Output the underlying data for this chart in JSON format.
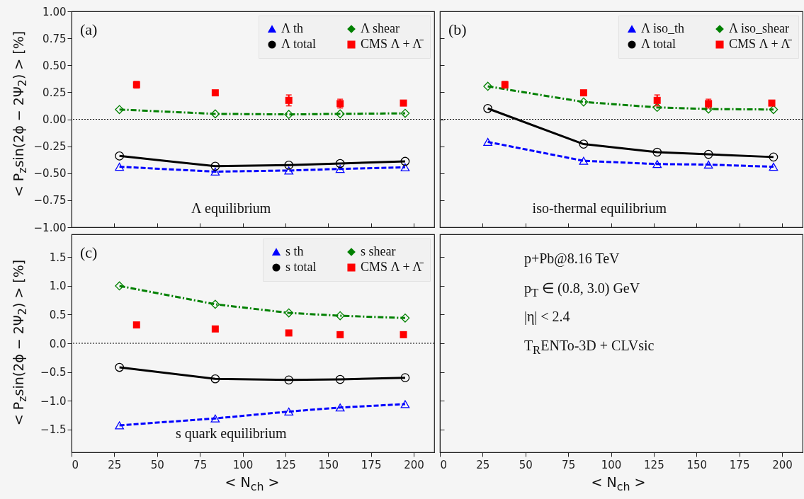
{
  "chart_data": [
    {
      "type": "line",
      "x": [
        28,
        84,
        127,
        157,
        195
      ],
      "xlim": [
        0,
        212
      ],
      "xticks": [
        0,
        25,
        50,
        75,
        100,
        125,
        150,
        175,
        200
      ],
      "ylim": [
        -1,
        1
      ],
      "yticks": [
        {
          "value": -1,
          "label": "−1.00"
        },
        {
          "value": -0.75,
          "label": "−0.75"
        },
        {
          "value": -0.5,
          "label": "−0.50"
        },
        {
          "value": -0.25,
          "label": "−0.25"
        },
        {
          "value": 0,
          "label": "0.00"
        },
        {
          "value": 0.25,
          "label": "0.25"
        },
        {
          "value": 0.5,
          "label": "0.50"
        },
        {
          "value": 0.75,
          "label": "0.75"
        },
        {
          "value": 1,
          "label": "1.00"
        }
      ],
      "ylabel": "< P$_{z}$sin(2ϕ − 2Ψ$_{2}$) > [%]",
      "tick_labels": "y",
      "legend": "top right",
      "grid": false,
      "series": [
        {
          "name": "Λ th",
          "color": "#0000ff",
          "marker": "triangle",
          "line_style": "dashed",
          "values": [
            -0.44,
            -0.485,
            -0.475,
            -0.46,
            -0.445
          ]
        },
        {
          "name": "Λ shear",
          "color": "#008000",
          "marker": "diamond",
          "line_style": "dotted",
          "values": [
            0.09,
            0.05,
            0.045,
            0.05,
            0.055
          ]
        },
        {
          "name": "Λ total",
          "color": "#000000",
          "marker": "circle",
          "line_style": "solid",
          "values": [
            -0.34,
            -0.435,
            -0.425,
            -0.41,
            -0.39
          ]
        },
        {
          "name": "CMS Λ + Λ̄",
          "type": "scatter",
          "color": "#ff0000",
          "marker": "square",
          "x": [
            38,
            84,
            127,
            157,
            194
          ],
          "values": [
            0.32,
            0.245,
            0.175,
            0.145,
            0.15
          ],
          "errors": [
            0.03,
            0.01,
            0.05,
            0.04,
            0.02
          ]
        }
      ],
      "ref_lines": [
        {
          "axis": "y",
          "value": 0,
          "color": "#000000",
          "line_style": "dotted"
        }
      ],
      "annotations": [
        "(a)",
        "Λ equilibrium"
      ]
    },
    {
      "type": "line",
      "x": [
        28,
        84,
        127,
        157,
        195
      ],
      "xlim": [
        0,
        212
      ],
      "xticks": [
        0,
        25,
        50,
        75,
        100,
        125,
        150,
        175,
        200
      ],
      "ylim": [
        -1,
        1
      ],
      "yticks": [
        -1,
        -0.75,
        -0.5,
        -0.25,
        0,
        0.25,
        0.5,
        0.75,
        1
      ],
      "tick_labels": false,
      "legend": "top right",
      "grid": false,
      "series": [
        {
          "name": "Λ iso_th",
          "color": "#0000ff",
          "marker": "triangle",
          "line_style": "dashed",
          "values": [
            -0.21,
            -0.385,
            -0.415,
            -0.42,
            -0.44
          ]
        },
        {
          "name": "Λ iso_shear",
          "color": "#008000",
          "marker": "diamond",
          "line_style": "dotted",
          "values": [
            0.305,
            0.16,
            0.11,
            0.095,
            0.09
          ]
        },
        {
          "name": "Λ total",
          "color": "#000000",
          "marker": "circle",
          "line_style": "solid",
          "values": [
            0.1,
            -0.23,
            -0.305,
            -0.325,
            -0.35
          ]
        },
        {
          "name": "CMS Λ + Λ̄",
          "type": "scatter",
          "color": "#ff0000",
          "marker": "square",
          "x": [
            38,
            84,
            127,
            157,
            194
          ],
          "values": [
            0.32,
            0.245,
            0.175,
            0.145,
            0.15
          ],
          "errors": [
            0.03,
            0.01,
            0.05,
            0.04,
            0.02
          ]
        }
      ],
      "ref_lines": [
        {
          "axis": "y",
          "value": 0,
          "color": "#000000",
          "line_style": "dotted"
        }
      ],
      "annotations": [
        "(b)",
        "iso-thermal equilibrium"
      ]
    },
    {
      "type": "line",
      "x": [
        28,
        84,
        127,
        157,
        195
      ],
      "xlim": [
        0,
        212
      ],
      "xticks": [
        0,
        25,
        50,
        75,
        100,
        125,
        150,
        175,
        200
      ],
      "ylim": [
        -1.9,
        1.9
      ],
      "yticks": [
        {
          "value": -1.5,
          "label": "−1.5"
        },
        {
          "value": -1,
          "label": "−1.0"
        },
        {
          "value": -0.5,
          "label": "−0.5"
        },
        {
          "value": 0,
          "label": "0.0"
        },
        {
          "value": 0.5,
          "label": "0.5"
        },
        {
          "value": 1,
          "label": "1.0"
        },
        {
          "value": 1.5,
          "label": "1.5"
        }
      ],
      "xlabel": "< N$_{ch}$ >",
      "ylabel": "< P$_{z}$sin(2ϕ − 2Ψ$_{2}$) > [%]",
      "legend": "top right",
      "grid": false,
      "series": [
        {
          "name": "s th",
          "color": "#0000ff",
          "marker": "triangle",
          "line_style": "dashed",
          "values": [
            -1.43,
            -1.31,
            -1.19,
            -1.12,
            -1.06
          ]
        },
        {
          "name": "s shear",
          "color": "#008000",
          "marker": "diamond",
          "line_style": "dotted",
          "values": [
            1.0,
            0.68,
            0.53,
            0.48,
            0.44
          ]
        },
        {
          "name": "s total",
          "color": "#000000",
          "marker": "circle",
          "line_style": "solid",
          "values": [
            -0.42,
            -0.62,
            -0.64,
            -0.63,
            -0.6
          ]
        },
        {
          "name": "CMS Λ + Λ̄",
          "type": "scatter",
          "color": "#ff0000",
          "marker": "square",
          "x": [
            38,
            84,
            127,
            157,
            194
          ],
          "values": [
            0.32,
            0.25,
            0.18,
            0.15,
            0.15
          ]
        }
      ],
      "ref_lines": [
        {
          "axis": "y",
          "value": 0,
          "color": "#000000",
          "line_style": "dotted"
        }
      ],
      "annotations": [
        "(c)",
        "s quark equilibrium"
      ]
    },
    {
      "type": "line",
      "xlim": [
        0,
        212
      ],
      "xticks": [
        0,
        25,
        50,
        75,
        100,
        125,
        150,
        175,
        200
      ],
      "ylim": [
        -1.9,
        1.9
      ],
      "yticks": [
        -1.5,
        -1,
        -0.5,
        0,
        0.5,
        1,
        1.5
      ],
      "xlabel": "< N$_{ch}$ >",
      "tick_labels": "x",
      "annotations": [
        "p+Pb@8.16 TeV",
        "p$_{T}$ ∈ (0.8, 3.0) GeV",
        "|η| < 2.4",
        "T$_{R}$ENTo-3D + CLVsic"
      ]
    }
  ]
}
